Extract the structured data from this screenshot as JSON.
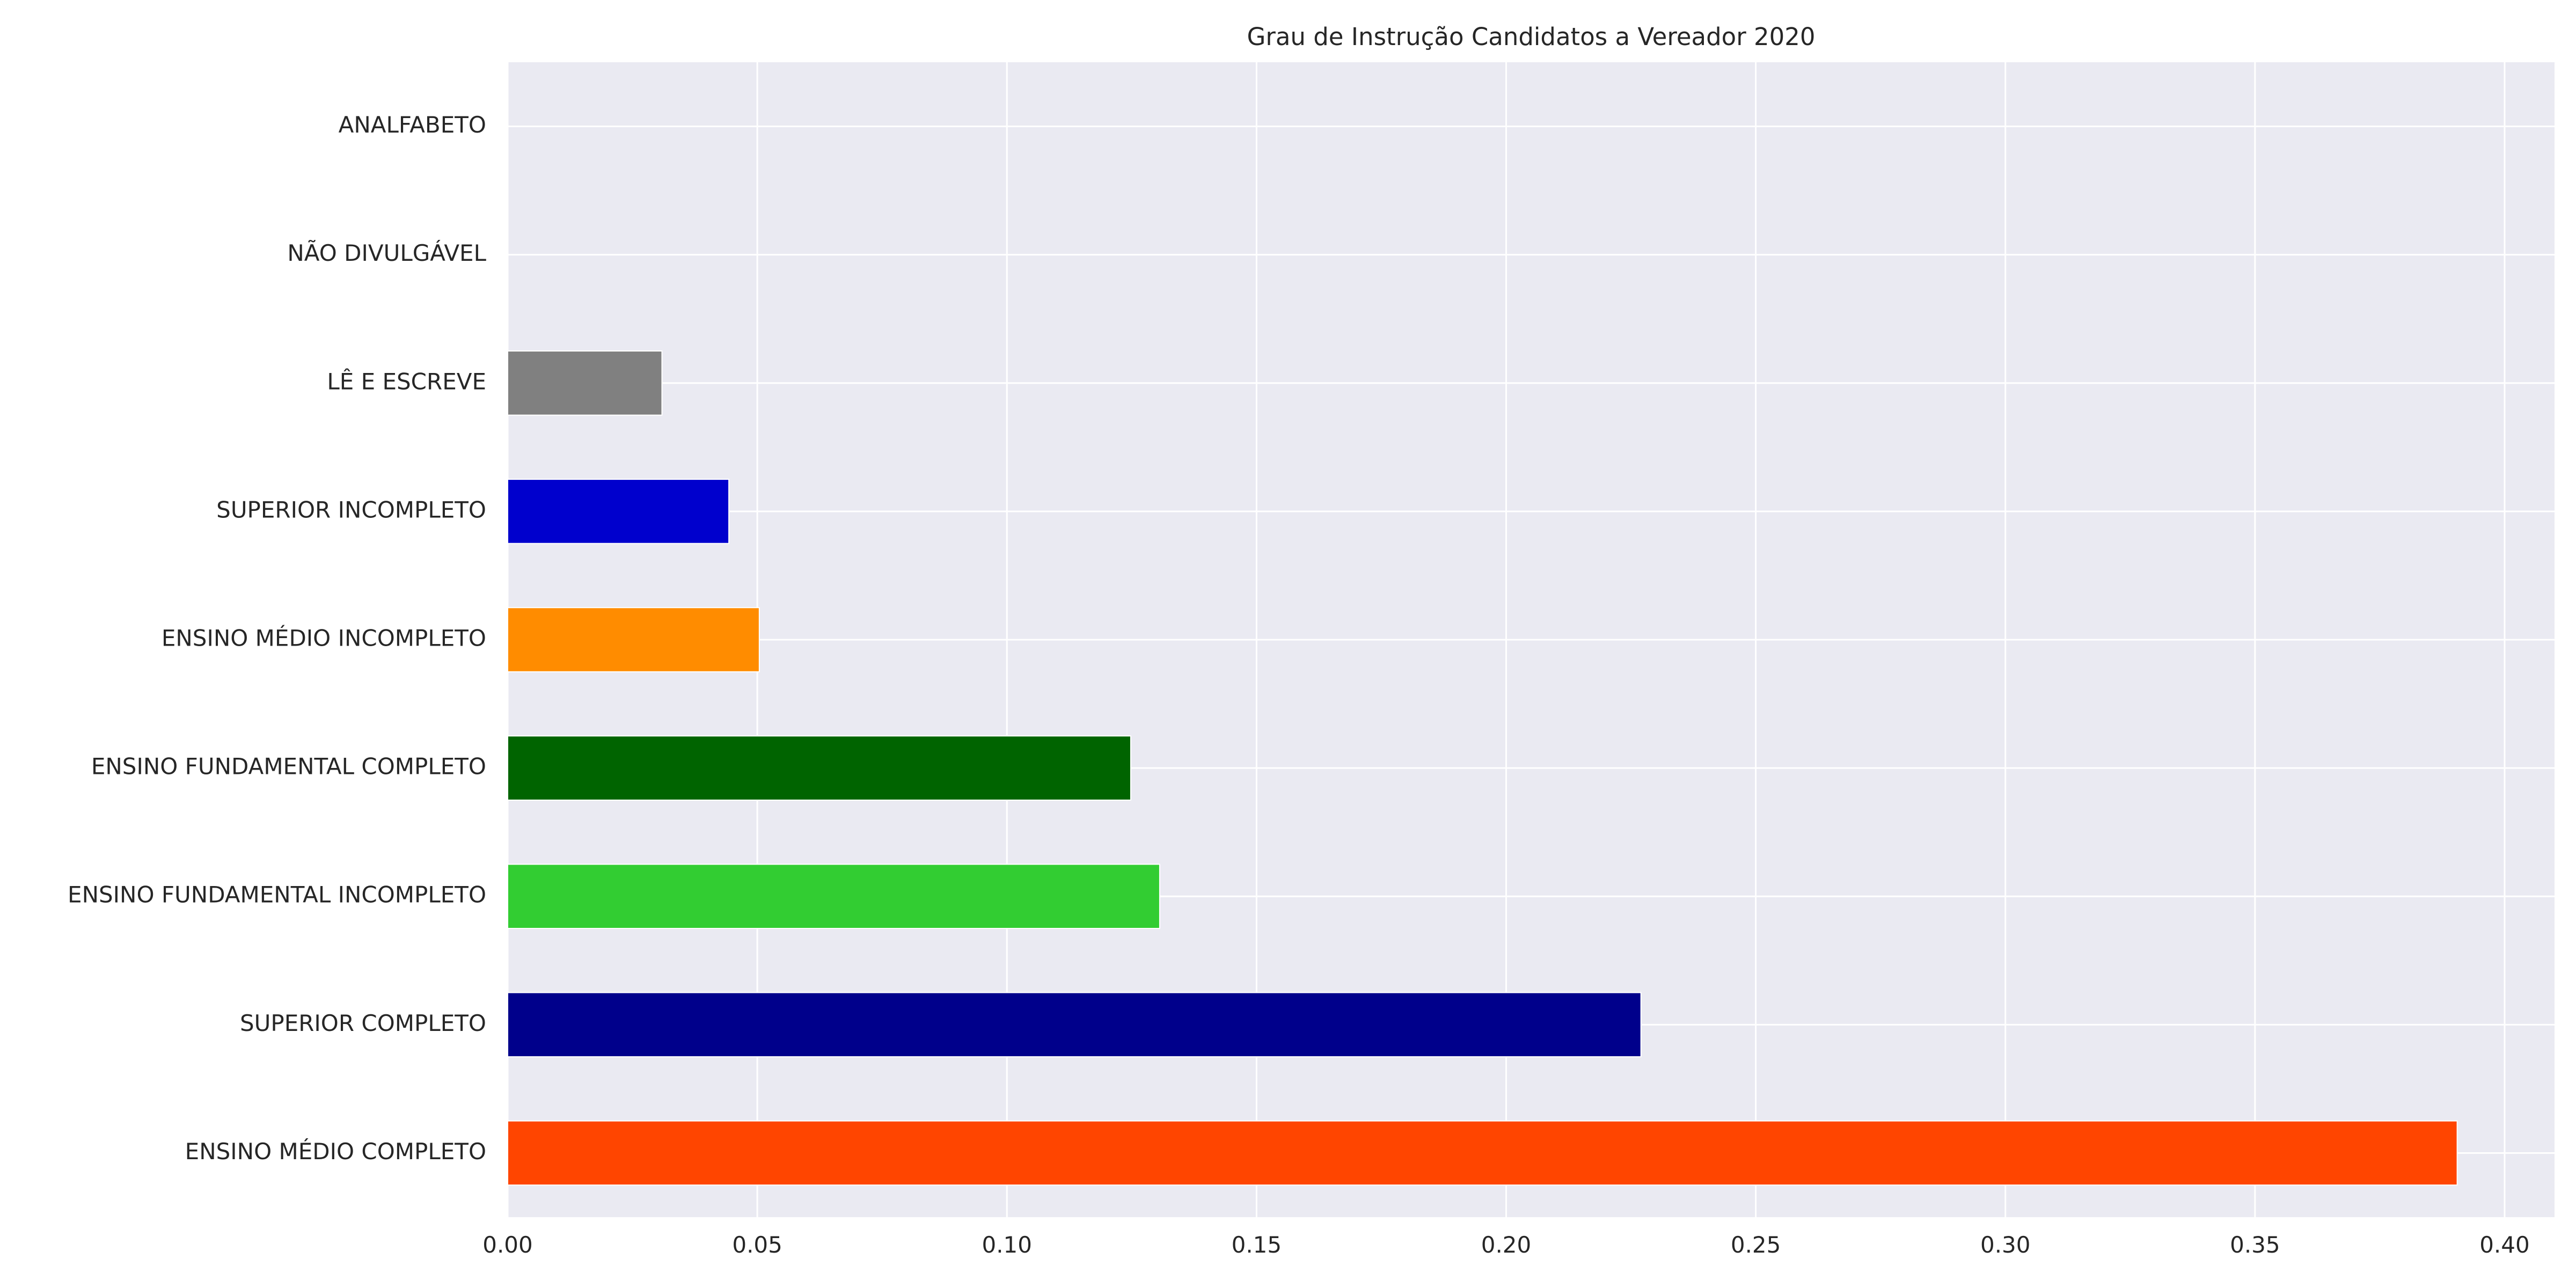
{
  "chart_data": {
    "type": "bar",
    "orientation": "horizontal",
    "title": "Grau de Instrução Candidatos a Vereador 2020",
    "xlabel": "",
    "ylabel": "",
    "categories": [
      "ENSINO MÉDIO COMPLETO",
      "SUPERIOR COMPLETO",
      "ENSINO FUNDAMENTAL INCOMPLETO",
      "ENSINO FUNDAMENTAL COMPLETO",
      "ENSINO MÉDIO INCOMPLETO",
      "SUPERIOR INCOMPLETO",
      "LÊ E ESCREVE",
      "NÃO DIVULGÁVEL",
      "ANALFABETO"
    ],
    "values": [
      0.3905,
      0.227,
      0.1306,
      0.1248,
      0.0504,
      0.0443,
      0.0309,
      0.0,
      0.0
    ],
    "bar_colors": [
      "#ff4500",
      "#00008b",
      "#32cd32",
      "#006400",
      "#ff8c00",
      "#0000cd",
      "#808080",
      "#808080",
      "#808080"
    ],
    "xlim": [
      0,
      0.41
    ],
    "xticks": [
      0.0,
      0.05,
      0.1,
      0.15,
      0.2,
      0.25,
      0.3,
      0.35,
      0.4
    ],
    "xtick_labels": [
      "0.00",
      "0.05",
      "0.10",
      "0.15",
      "0.20",
      "0.25",
      "0.30",
      "0.35",
      "0.40"
    ],
    "grid": true,
    "background_color": "#eaeaf2",
    "grid_color": "#ffffff"
  }
}
